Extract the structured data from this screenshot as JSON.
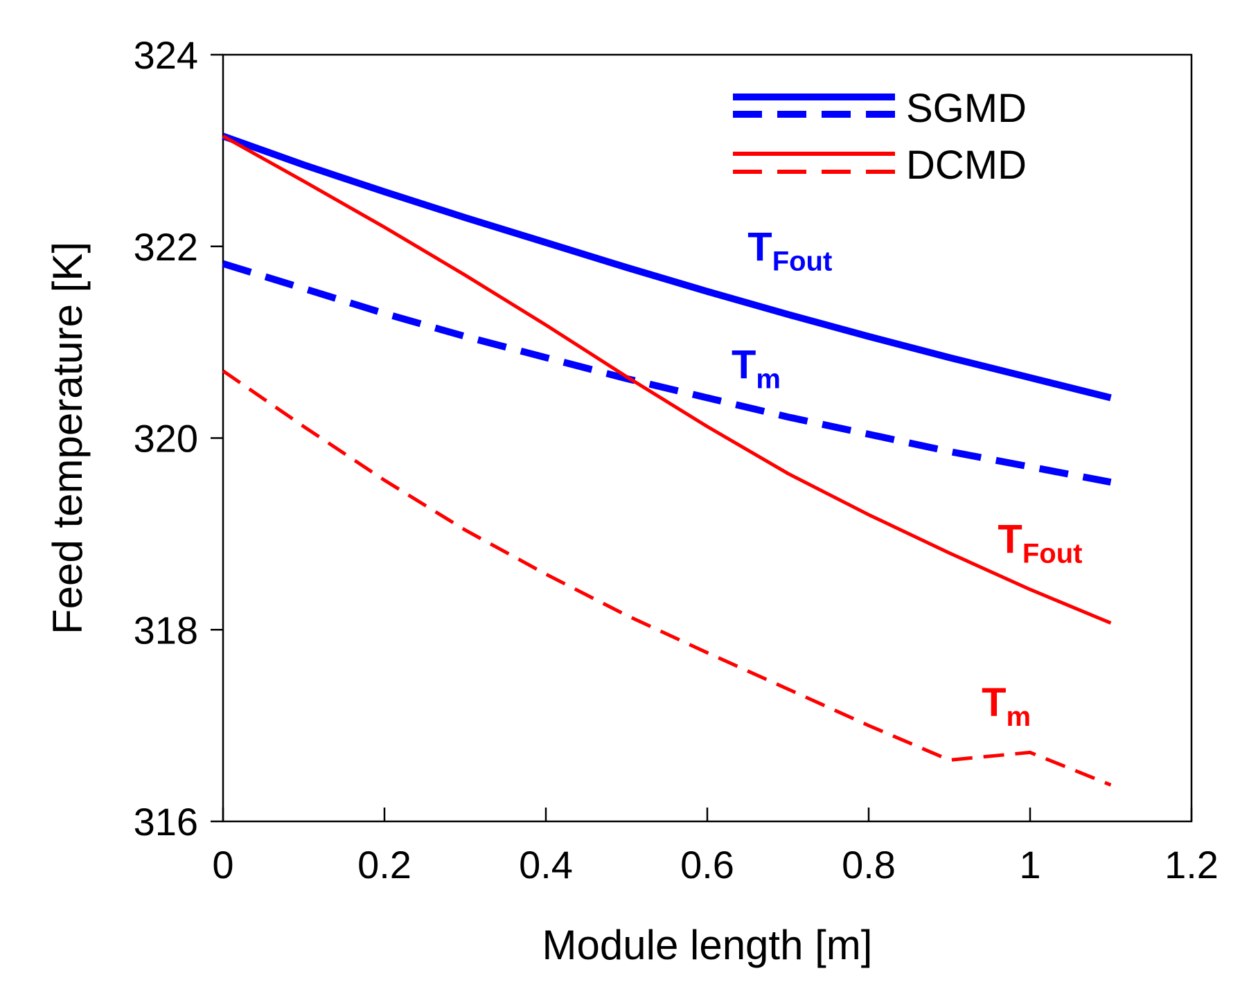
{
  "chart_data": {
    "type": "line",
    "title": "",
    "xlabel": "Module length [m]",
    "ylabel": "Feed temperature [K]",
    "xlim": [
      0,
      1.2
    ],
    "ylim": [
      316,
      324
    ],
    "x_ticks": [
      0,
      0.2,
      0.4,
      0.6,
      0.8,
      1,
      1.2
    ],
    "x_tick_labels": [
      "0",
      "0.2",
      "0.4",
      "0.6",
      "0.8",
      "1",
      "1.2"
    ],
    "y_ticks": [
      316,
      318,
      320,
      322,
      324
    ],
    "y_tick_labels": [
      "316",
      "318",
      "320",
      "322",
      "324"
    ],
    "grid": false,
    "legend": {
      "position": "top-right",
      "entries": [
        {
          "label": "SGMD",
          "color": "#0000ff",
          "styles": [
            "solid",
            "dashed"
          ]
        },
        {
          "label": "DCMD",
          "color": "#ff0000",
          "styles": [
            "solid",
            "dashed"
          ]
        }
      ]
    },
    "series": [
      {
        "group": "SGMD",
        "style": "solid",
        "color": "#0000ff",
        "width": "thick",
        "x": [
          0,
          0.1,
          0.2,
          0.3,
          0.4,
          0.5,
          0.6,
          0.7,
          0.8,
          0.9,
          1.0,
          1.1
        ],
        "y": [
          323.15,
          322.85,
          322.57,
          322.3,
          322.04,
          321.78,
          321.53,
          321.29,
          321.06,
          320.84,
          320.63,
          320.42
        ]
      },
      {
        "group": "SGMD",
        "style": "dashed",
        "color": "#0000ff",
        "width": "thick",
        "x": [
          0,
          0.1,
          0.2,
          0.3,
          0.4,
          0.5,
          0.6,
          0.7,
          0.8,
          0.9,
          1.0,
          1.1
        ],
        "y": [
          321.82,
          321.56,
          321.3,
          321.06,
          320.84,
          320.62,
          320.42,
          320.22,
          320.04,
          319.86,
          319.7,
          319.54
        ]
      },
      {
        "group": "DCMD",
        "style": "solid",
        "color": "#ff0000",
        "width": "thin",
        "x": [
          0,
          0.1,
          0.2,
          0.3,
          0.4,
          0.5,
          0.6,
          0.7,
          0.8,
          0.9,
          1.0,
          1.1
        ],
        "y": [
          323.15,
          322.68,
          322.2,
          321.7,
          321.18,
          320.64,
          320.12,
          319.63,
          319.2,
          318.8,
          318.42,
          318.07
        ]
      },
      {
        "group": "DCMD",
        "style": "dashed",
        "color": "#ff0000",
        "width": "thin",
        "x": [
          0,
          0.1,
          0.2,
          0.3,
          0.4,
          0.5,
          0.6,
          0.7,
          0.8,
          0.9,
          1.0,
          1.1
        ],
        "y": [
          320.7,
          320.12,
          319.56,
          319.04,
          318.58,
          318.15,
          317.76,
          317.38,
          317.0,
          316.64,
          316.72,
          316.38
        ]
      }
    ],
    "annotations": [
      {
        "main": "T",
        "sub": "Fout",
        "color": "#0000ff",
        "x": 0.65,
        "y": 321.85
      },
      {
        "main": "T",
        "sub": "m",
        "color": "#0000ff",
        "x": 0.63,
        "y": 320.62
      },
      {
        "main": "T",
        "sub": "Fout",
        "color": "#ff0000",
        "x": 0.96,
        "y": 318.8
      },
      {
        "main": "T",
        "sub": "m",
        "color": "#ff0000",
        "x": 0.94,
        "y": 317.1
      }
    ]
  }
}
